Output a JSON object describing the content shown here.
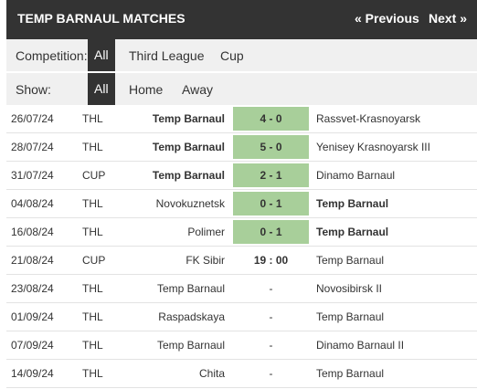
{
  "header": {
    "title": "TEMP BARNAUL MATCHES",
    "prev": "« Previous",
    "next": "Next »"
  },
  "competition": {
    "label": "Competition:",
    "options": [
      "All",
      "Third League",
      "Cup"
    ]
  },
  "show": {
    "label": "Show:",
    "options": [
      "All",
      "Home",
      "Away"
    ]
  },
  "matches": [
    {
      "date": "26/07/24",
      "comp": "THL",
      "home": "Temp Barnaul",
      "score": "4 - 0",
      "away": "Rassvet-Krasnoyarsk"
    },
    {
      "date": "28/07/24",
      "comp": "THL",
      "home": "Temp Barnaul",
      "score": "5 - 0",
      "away": "Yenisey Krasnoyarsk III"
    },
    {
      "date": "31/07/24",
      "comp": "CUP",
      "home": "Temp Barnaul",
      "score": "2 - 1",
      "away": "Dinamo Barnaul"
    },
    {
      "date": "04/08/24",
      "comp": "THL",
      "home": "Novokuznetsk",
      "score": "0 - 1",
      "away": "Temp Barnaul"
    },
    {
      "date": "16/08/24",
      "comp": "THL",
      "home": "Polimer",
      "score": "0 - 1",
      "away": "Temp Barnaul"
    },
    {
      "date": "21/08/24",
      "comp": "CUP",
      "home": "FK Sibir",
      "score": "19 : 00",
      "away": "Temp Barnaul"
    },
    {
      "date": "23/08/24",
      "comp": "THL",
      "home": "Temp Barnaul",
      "score": "-",
      "away": "Novosibirsk II"
    },
    {
      "date": "01/09/24",
      "comp": "THL",
      "home": "Raspadskaya",
      "score": "-",
      "away": "Temp Barnaul"
    },
    {
      "date": "07/09/24",
      "comp": "THL",
      "home": "Temp Barnaul",
      "score": "-",
      "away": "Dinamo Barnaul II"
    },
    {
      "date": "14/09/24",
      "comp": "THL",
      "home": "Chita",
      "score": "-",
      "away": "Temp Barnaul"
    }
  ]
}
